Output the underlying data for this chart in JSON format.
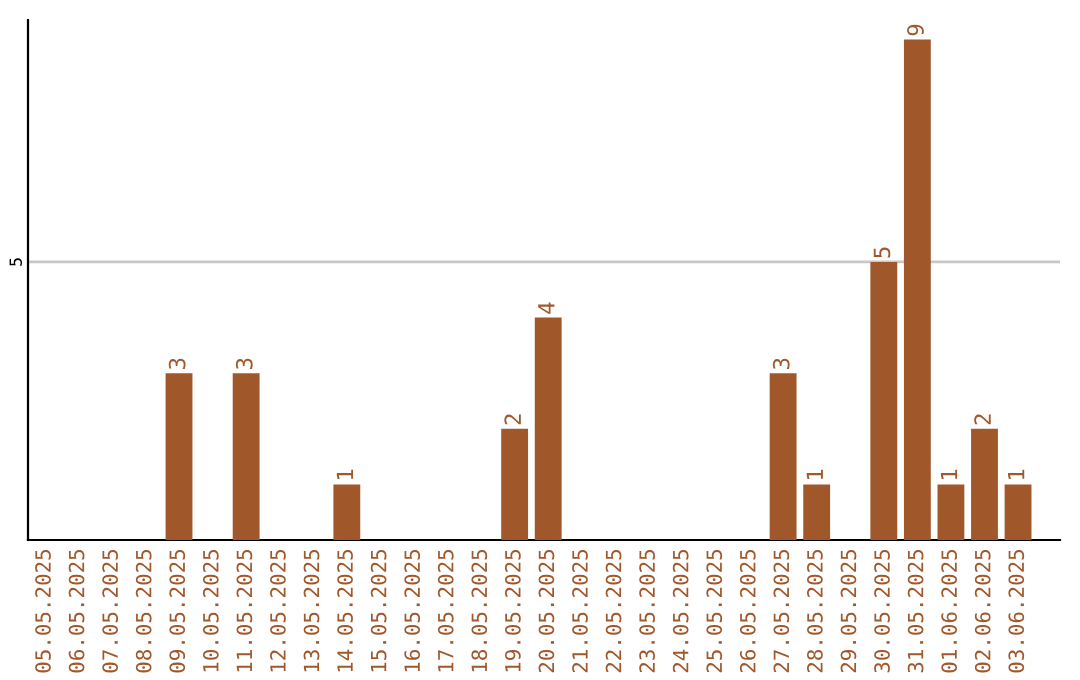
{
  "chart_data": {
    "type": "bar",
    "categories": [
      "05.05.2025",
      "06.05.2025",
      "07.05.2025",
      "08.05.2025",
      "09.05.2025",
      "10.05.2025",
      "11.05.2025",
      "12.05.2025",
      "13.05.2025",
      "14.05.2025",
      "15.05.2025",
      "16.05.2025",
      "17.05.2025",
      "18.05.2025",
      "19.05.2025",
      "20.05.2025",
      "21.05.2025",
      "22.05.2025",
      "23.05.2025",
      "24.05.2025",
      "25.05.2025",
      "26.05.2025",
      "27.05.2025",
      "28.05.2025",
      "29.05.2025",
      "30.05.2025",
      "31.05.2025",
      "01.06.2025",
      "02.06.2025",
      "03.06.2025"
    ],
    "values": [
      0,
      0,
      0,
      0,
      3,
      0,
      3,
      0,
      0,
      1,
      0,
      0,
      0,
      0,
      2,
      4,
      0,
      0,
      0,
      0,
      0,
      0,
      3,
      1,
      0,
      5,
      9,
      1,
      2,
      1
    ],
    "value_labels": [
      null,
      null,
      null,
      null,
      "3",
      null,
      "3",
      null,
      null,
      "1",
      null,
      null,
      null,
      null,
      "2",
      "4",
      null,
      null,
      null,
      null,
      null,
      null,
      "3",
      "1",
      null,
      "5",
      "9",
      "1",
      "2",
      "1"
    ],
    "color": "#a0572a",
    "ylim": [
      0,
      9.35
    ],
    "yticks": [
      5
    ],
    "grid": "y"
  }
}
